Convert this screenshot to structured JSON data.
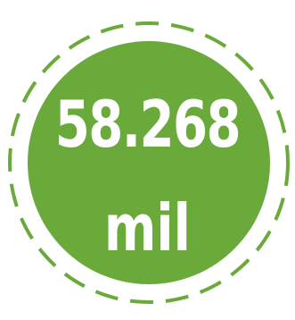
{
  "badge": {
    "value": "58.268",
    "unit": "mil",
    "fill_color": "#6aaa3a",
    "ring_color": "#6aaa3a",
    "text_color": "#ffffff"
  }
}
